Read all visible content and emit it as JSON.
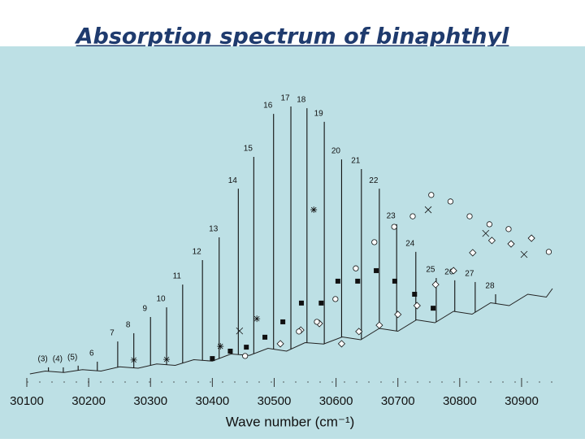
{
  "chart_data": {
    "type": "spectrum",
    "title": "Absorption spectrum of binaphthyl",
    "xlabel": "Wave number (cm⁻¹)",
    "xlim": [
      30100,
      30950
    ],
    "ylim": [
      0,
      100
    ],
    "xticks": [
      30100,
      30200,
      30300,
      30400,
      30500,
      30600,
      30700,
      30800,
      30900
    ],
    "trace": {
      "color": "#222222",
      "x": [
        30105,
        30130,
        30160,
        30190,
        30220,
        30250,
        30280,
        30310,
        30340,
        30370,
        30400,
        30430,
        30460,
        30490,
        30520,
        30550,
        30580,
        30610,
        30640,
        30670,
        30700,
        30730,
        30760,
        30790,
        30820,
        30850,
        30880,
        30910,
        30940,
        30950
      ],
      "values": [
        0,
        1,
        0.5,
        1.5,
        1,
        2.5,
        2,
        3.5,
        3,
        5,
        4.5,
        7,
        6.5,
        9,
        8,
        11,
        10.5,
        13,
        12,
        16,
        15,
        19,
        18,
        22,
        21,
        25,
        24,
        28,
        27,
        30
      ]
    },
    "peaks": {
      "color": "#111111",
      "labels": [
        "(3)",
        "(4)",
        "(5)",
        "6",
        "7",
        "8",
        "9",
        "10",
        "11",
        "12",
        "13",
        "14",
        "15",
        "16",
        "17",
        "18",
        "19",
        "20",
        "21",
        "22",
        "23",
        "24",
        "25",
        "26",
        "27",
        "28"
      ],
      "x": [
        30135,
        30159,
        30183,
        30214,
        30247,
        30273,
        30300,
        30326,
        30352,
        30384,
        30411,
        30442,
        30467,
        30499,
        30527,
        30553,
        30581,
        30609,
        30641,
        30670,
        30698,
        30729,
        30762,
        30792,
        30825,
        30858
      ],
      "values": [
        2.3,
        2.3,
        2.9,
        4.3,
        11.4,
        14.3,
        20,
        23.4,
        31.4,
        40,
        48,
        65.1,
        76.3,
        91.4,
        94,
        93.4,
        88.6,
        75.4,
        72,
        65.1,
        52.6,
        42.9,
        33.7,
        32.9,
        32.3,
        28
      ]
    },
    "series": [
      {
        "marker": "square",
        "color": "#111111",
        "x": [
          30400,
          30429,
          30455,
          30485,
          30514,
          30544,
          30576,
          30603,
          30635,
          30665,
          30695,
          30727,
          30757
        ],
        "values": [
          5.4,
          8,
          9.4,
          12.9,
          18.3,
          24.9,
          24.9,
          32.6,
          32.6,
          36.3,
          32.6,
          28,
          23.1
        ]
      },
      {
        "marker": "diamond",
        "color": "#111111",
        "x": [
          30510,
          30543,
          30573,
          30609,
          30637,
          30670,
          30700,
          30731,
          30761,
          30790,
          30821,
          30852,
          30883,
          30916
        ],
        "values": [
          10.6,
          15.4,
          17.7,
          10.6,
          14.9,
          17.1,
          20.9,
          24,
          31.4,
          36.3,
          42.6,
          46.9,
          45.7,
          47.7
        ]
      },
      {
        "marker": "circle",
        "color": "#111111",
        "x": [
          30453,
          30540,
          30569,
          30599,
          30632,
          30662,
          30694,
          30724,
          30754,
          30785,
          30816,
          30848,
          30879,
          30944
        ],
        "values": [
          6.3,
          14.9,
          18.3,
          26.3,
          37.1,
          46.3,
          51.7,
          55.4,
          62.9,
          60.6,
          55.4,
          52.6,
          50.9,
          42.9
        ]
      },
      {
        "marker": "asterisk",
        "color": "#111111",
        "x": [
          30273,
          30326,
          30413,
          30472,
          30564
        ],
        "values": [
          4.9,
          5.1,
          9.7,
          19.4,
          57.7
        ]
      },
      {
        "marker": "cross",
        "color": "#111111",
        "x": [
          30444,
          30749,
          30842,
          30904
        ],
        "values": [
          15.1,
          57.7,
          49.4,
          42
        ]
      }
    ]
  }
}
